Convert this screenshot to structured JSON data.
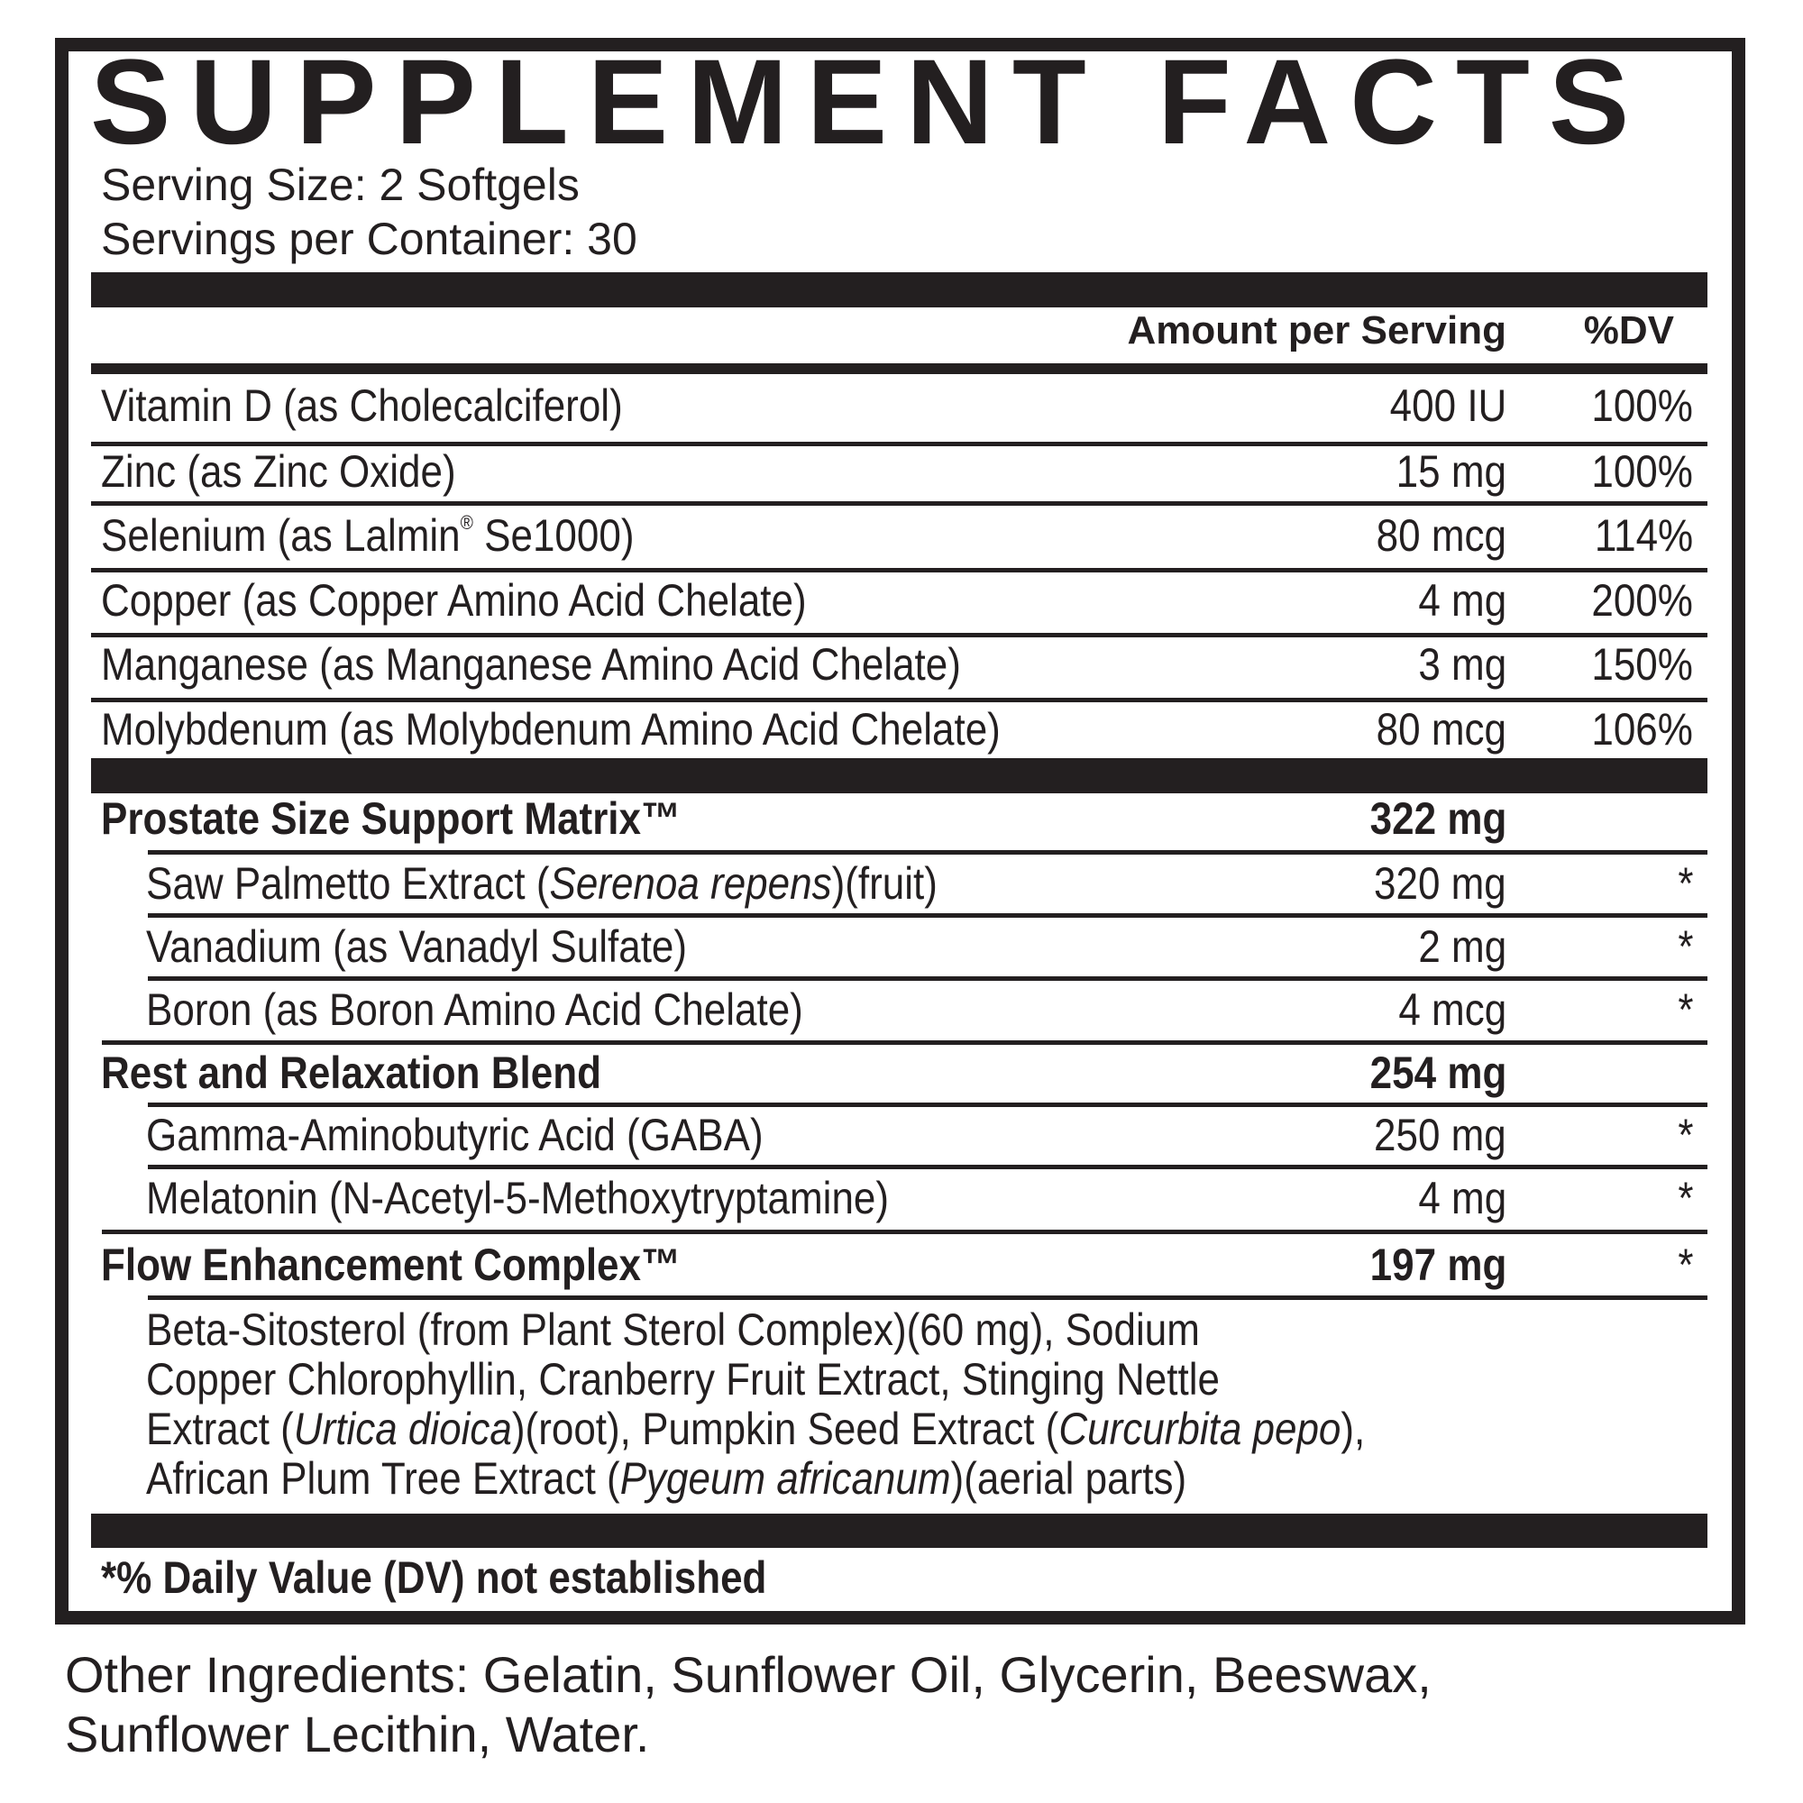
{
  "title": "SUPPLEMENT FACTS",
  "serving_size": "Serving Size: 2 Softgels",
  "servings_per_container": "Servings per Container: 30",
  "header": {
    "amount": "Amount per Serving",
    "dv": "%DV"
  },
  "rows": [
    {
      "kind": "nutrient",
      "name": [
        {
          "t": "Vitamin D (as Cholecalciferol)"
        }
      ],
      "amount": "400 IU",
      "dv": "100%"
    },
    {
      "kind": "nutrient",
      "name": [
        {
          "t": "Zinc (as Zinc Oxide)"
        }
      ],
      "amount": "15 mg",
      "dv": "100%"
    },
    {
      "kind": "nutrient",
      "name": [
        {
          "t": "Selenium (as Lalmin"
        },
        {
          "t": "®",
          "sup": true
        },
        {
          "t": " Se1000)"
        }
      ],
      "amount": "80 mcg",
      "dv": "114%"
    },
    {
      "kind": "nutrient",
      "name": [
        {
          "t": "Copper (as Copper Amino Acid Chelate)"
        }
      ],
      "amount": "4 mg",
      "dv": "200%"
    },
    {
      "kind": "nutrient",
      "name": [
        {
          "t": "Manganese (as Manganese Amino Acid Chelate)"
        }
      ],
      "amount": "3 mg",
      "dv": "150%"
    },
    {
      "kind": "nutrient",
      "name": [
        {
          "t": "Molybdenum (as Molybdenum Amino Acid Chelate)"
        }
      ],
      "amount": "80 mcg",
      "dv": "106%"
    },
    {
      "kind": "blend",
      "name": [
        {
          "t": "Prostate Size Support Matrix™"
        }
      ],
      "amount": "322 mg",
      "dv": ""
    },
    {
      "kind": "sub",
      "name": [
        {
          "t": "Saw Palmetto Extract ("
        },
        {
          "t": "Serenoa repens",
          "i": true
        },
        {
          "t": ")(fruit)"
        }
      ],
      "amount": "320 mg",
      "dv": "*"
    },
    {
      "kind": "sub",
      "name": [
        {
          "t": "Vanadium (as Vanadyl Sulfate)"
        }
      ],
      "amount": "2 mg",
      "dv": "*"
    },
    {
      "kind": "sub",
      "name": [
        {
          "t": "Boron (as Boron Amino Acid Chelate)"
        }
      ],
      "amount": "4 mcg",
      "dv": "*"
    },
    {
      "kind": "blend",
      "name": [
        {
          "t": "Rest and Relaxation Blend"
        }
      ],
      "amount": "254 mg",
      "dv": ""
    },
    {
      "kind": "sub",
      "name": [
        {
          "t": "Gamma-Aminobutyric Acid (GABA)"
        }
      ],
      "amount": "250 mg",
      "dv": "*"
    },
    {
      "kind": "sub",
      "name": [
        {
          "t": "Melatonin (N-Acetyl-5-Methoxytryptamine)"
        }
      ],
      "amount": "4 mg",
      "dv": "*"
    },
    {
      "kind": "blend",
      "name": [
        {
          "t": "Flow Enhancement Complex™"
        }
      ],
      "amount": "197 mg",
      "dv": "*"
    }
  ],
  "flow_ingredients": [
    [
      {
        "t": "Beta-Sitosterol (from Plant Sterol Complex)(60 mg), Sodium"
      }
    ],
    [
      {
        "t": "Copper Chlorophyllin, Cranberry Fruit Extract, Stinging Nettle"
      }
    ],
    [
      {
        "t": "Extract ("
      },
      {
        "t": "Urtica dioica",
        "i": true
      },
      {
        "t": ")(root), Pumpkin Seed Extract ("
      },
      {
        "t": "Curcurbita pepo",
        "i": true
      },
      {
        "t": "),"
      }
    ],
    [
      {
        "t": "African Plum Tree Extract ("
      },
      {
        "t": "Pygeum africanum",
        "i": true
      },
      {
        "t": ")(aerial parts)"
      }
    ]
  ],
  "footnote": "*% Daily Value (DV) not established",
  "other_ingredients": [
    "Other Ingredients: Gelatin, Sunflower Oil, Glycerin, Beeswax,",
    "Sunflower Lecithin, Water."
  ]
}
